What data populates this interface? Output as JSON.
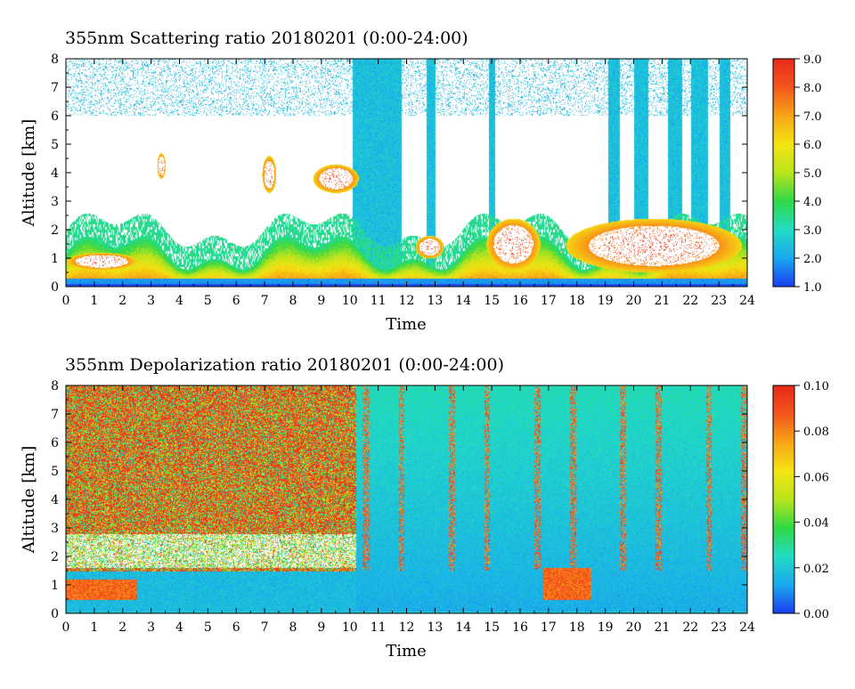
{
  "chart_data": [
    {
      "type": "heatmap",
      "title": "355nm Scattering ratio  20180201 (0:00-24:00)",
      "xlabel": "Time",
      "ylabel": "Altitude [km]",
      "xlim": [
        0,
        24
      ],
      "ylim": [
        0,
        8
      ],
      "x_ticks": [
        "0",
        "1",
        "2",
        "3",
        "4",
        "5",
        "6",
        "7",
        "8",
        "9",
        "10",
        "11",
        "12",
        "13",
        "14",
        "15",
        "16",
        "17",
        "18",
        "19",
        "20",
        "21",
        "22",
        "23",
        "24"
      ],
      "y_ticks": [
        "0",
        "1",
        "2",
        "3",
        "4",
        "5",
        "6",
        "7",
        "8"
      ],
      "colorbar": {
        "range": [
          1.0,
          9.0
        ],
        "ticks": [
          "1.0",
          "2.0",
          "3.0",
          "4.0",
          "5.0",
          "6.0",
          "7.0",
          "8.0",
          "9.0"
        ],
        "palette": [
          "#1a3df0",
          "#19a8ee",
          "#22dcc4",
          "#30d845",
          "#b8e41c",
          "#f5e412",
          "#f8a516",
          "#f4561c",
          "#e8281b"
        ]
      },
      "features": {
        "low_boundary_layer_km": [
          0.2,
          1.8
        ],
        "cloud_layers": [
          {
            "time": [
              0,
              2.5
            ],
            "altitude_km": [
              0.6,
              1.2
            ]
          },
          {
            "time": [
              3.2,
              3.5
            ],
            "altitude_km": [
              3.8,
              4.7
            ]
          },
          {
            "time": [
              6.9,
              7.4
            ],
            "altitude_km": [
              3.3,
              4.6
            ]
          },
          {
            "time": [
              8.7,
              10.3
            ],
            "altitude_km": [
              3.3,
              4.3
            ]
          },
          {
            "time": [
              12.3,
              13.3
            ],
            "altitude_km": [
              1.0,
              1.8
            ]
          },
          {
            "time": [
              14.8,
              16.7
            ],
            "altitude_km": [
              0.6,
              2.4
            ]
          },
          {
            "time": [
              17.6,
              23.8
            ],
            "altitude_km": [
              0.5,
              2.4
            ]
          }
        ],
        "high_signal_columns": [
          [
            10.1,
            11.8
          ],
          [
            12.7,
            13.0
          ],
          [
            14.9,
            15.1
          ],
          [
            19.1,
            19.5
          ],
          [
            20.0,
            20.5
          ],
          [
            21.2,
            21.7
          ],
          [
            22.0,
            22.6
          ],
          [
            23.0,
            23.4
          ]
        ]
      }
    },
    {
      "type": "heatmap",
      "title": "355nm Depolarization ratio  20180201 (0:00-24:00)",
      "xlabel": "Time",
      "ylabel": "Altitude [km]",
      "xlim": [
        0,
        24
      ],
      "ylim": [
        0,
        8
      ],
      "x_ticks": [
        "0",
        "1",
        "2",
        "3",
        "4",
        "5",
        "6",
        "7",
        "8",
        "9",
        "10",
        "11",
        "12",
        "13",
        "14",
        "15",
        "16",
        "17",
        "18",
        "19",
        "20",
        "21",
        "22",
        "23",
        "24"
      ],
      "y_ticks": [
        "0",
        "1",
        "2",
        "3",
        "4",
        "5",
        "6",
        "7",
        "8"
      ],
      "colorbar": {
        "range": [
          0.0,
          0.1
        ],
        "ticks": [
          "0.00",
          "0.02",
          "0.04",
          "0.06",
          "0.08",
          "0.10"
        ],
        "palette": [
          "#1a3df0",
          "#19a8ee",
          "#22dcc4",
          "#30d845",
          "#b8e41c",
          "#f5e412",
          "#f8a516",
          "#f4561c",
          "#e8281b"
        ]
      },
      "features": {
        "noisy_high_region": {
          "time": [
            0,
            10.2
          ],
          "altitude_km": [
            1.5,
            8
          ]
        },
        "low_depol_region": {
          "time": [
            10.2,
            24
          ],
          "altitude_km": [
            0,
            8
          ]
        },
        "high_depol_patches": [
          {
            "time": [
              0,
              2.5
            ],
            "altitude_km": [
              0.5,
              1.2
            ]
          },
          {
            "time": [
              16.8,
              18.5
            ],
            "altitude_km": [
              0.5,
              1.6
            ]
          }
        ]
      }
    }
  ]
}
